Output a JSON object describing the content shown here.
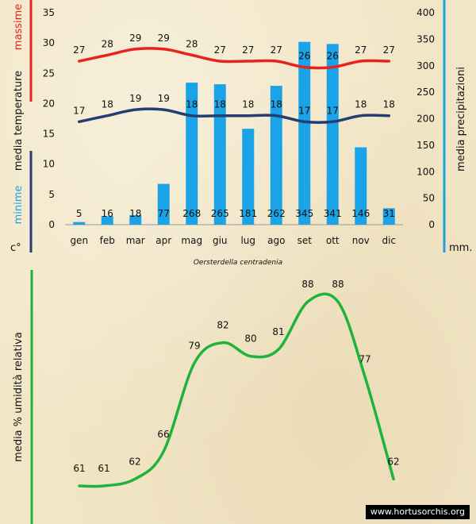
{
  "caption": "Oersterdella centradenia",
  "watermark": "www.hortusorchis.org",
  "colors": {
    "tmax": "#e8221d",
    "tmin": "#243e73",
    "rain": "#1aa3e6",
    "humidity": "#1fb33c"
  },
  "chart_data": [
    {
      "type": "bar+line",
      "categories": [
        "gen",
        "feb",
        "mar",
        "apr",
        "mag",
        "giu",
        "lug",
        "ago",
        "set",
        "ott",
        "nov",
        "dic"
      ],
      "left_axis": {
        "label_red": "massime",
        "label_black": "media  temperature",
        "label_blue": "minime",
        "unit": "c°",
        "ylim": [
          0,
          35
        ],
        "ticks": [
          0,
          5,
          10,
          15,
          20,
          25,
          30,
          35
        ]
      },
      "right_axis": {
        "label": "media  precipitazioni",
        "unit": "mm.",
        "ylim": [
          0,
          400
        ],
        "ticks": [
          0,
          50,
          100,
          150,
          200,
          250,
          300,
          350,
          400
        ]
      },
      "series": [
        {
          "name": "massime",
          "kind": "line",
          "axis": "left",
          "values": [
            27,
            28,
            29,
            29,
            28,
            27,
            27,
            27,
            26,
            26,
            27,
            27
          ]
        },
        {
          "name": "minime",
          "kind": "line",
          "axis": "left",
          "values": [
            17,
            18,
            19,
            19,
            18,
            18,
            18,
            18,
            17,
            17,
            18,
            18
          ]
        },
        {
          "name": "precipitazioni",
          "kind": "bar",
          "axis": "right",
          "values": [
            5,
            16,
            18,
            77,
            268,
            265,
            181,
            262,
            345,
            341,
            146,
            31
          ]
        }
      ]
    },
    {
      "type": "line",
      "ylabel": "media % umidità relativa",
      "values": [
        61,
        61,
        62,
        66,
        79,
        82,
        80,
        81,
        88,
        88,
        77,
        62
      ]
    }
  ]
}
